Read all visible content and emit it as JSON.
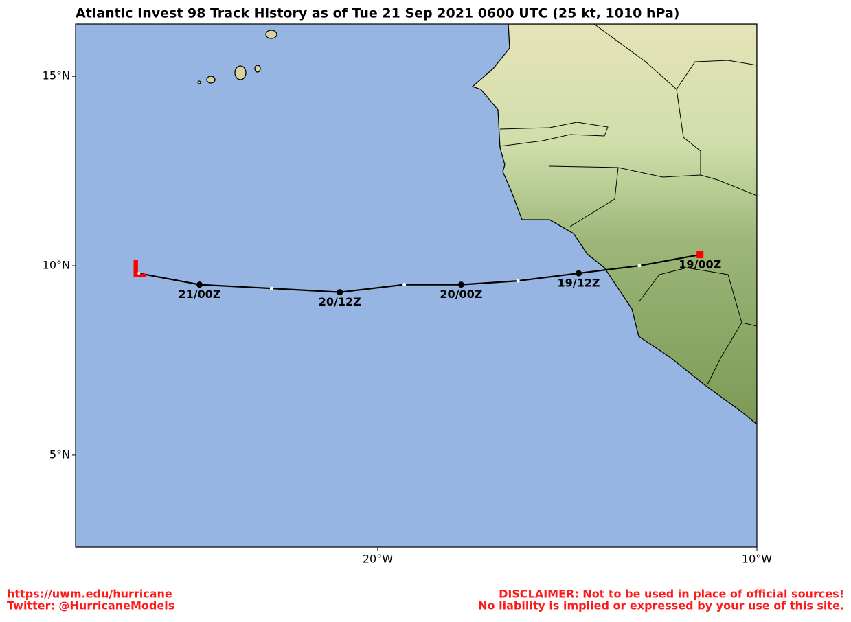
{
  "chart_data": {
    "type": "track",
    "title": "Atlantic Invest 98 Track History as of Tue 21 Sep 2021 0600 UTC (25 kt, 1010 hPa)",
    "xlim": [
      -27.97,
      -10
    ],
    "ylim": [
      2.57,
      16.38
    ],
    "xticks": [
      {
        "value": -20,
        "label": "20°W"
      },
      {
        "value": -10,
        "label": "10°W"
      }
    ],
    "yticks": [
      {
        "value": 15,
        "label": "15°N"
      },
      {
        "value": 10,
        "label": "10°N"
      },
      {
        "value": 5,
        "label": "5°N"
      }
    ],
    "series": [
      {
        "color": "#000000",
        "x": [
          -11.5,
          -13.1,
          -14.7,
          -16.3,
          -17.8,
          -19.3,
          -21.0,
          -22.8,
          -24.7,
          -26.3
        ],
        "values": [
          10.29,
          10.0,
          9.8,
          9.6,
          9.5,
          9.5,
          9.3,
          9.4,
          9.5,
          9.8
        ],
        "point_labels": [
          "19/00Z",
          null,
          "19/12Z",
          null,
          "20/00Z",
          null,
          "20/12Z",
          null,
          "21/00Z",
          null
        ]
      }
    ],
    "start_color": "#ff0000",
    "end_symbol": "L",
    "end_color": "#ff0000"
  },
  "footer": {
    "left": [
      "https://uwm.edu/hurricane",
      "Twitter: @HurricaneModels"
    ],
    "right": [
      "DISCLAIMER: Not to be used in place of official sources!",
      "No liability is implied or expressed by your use of this site."
    ]
  }
}
